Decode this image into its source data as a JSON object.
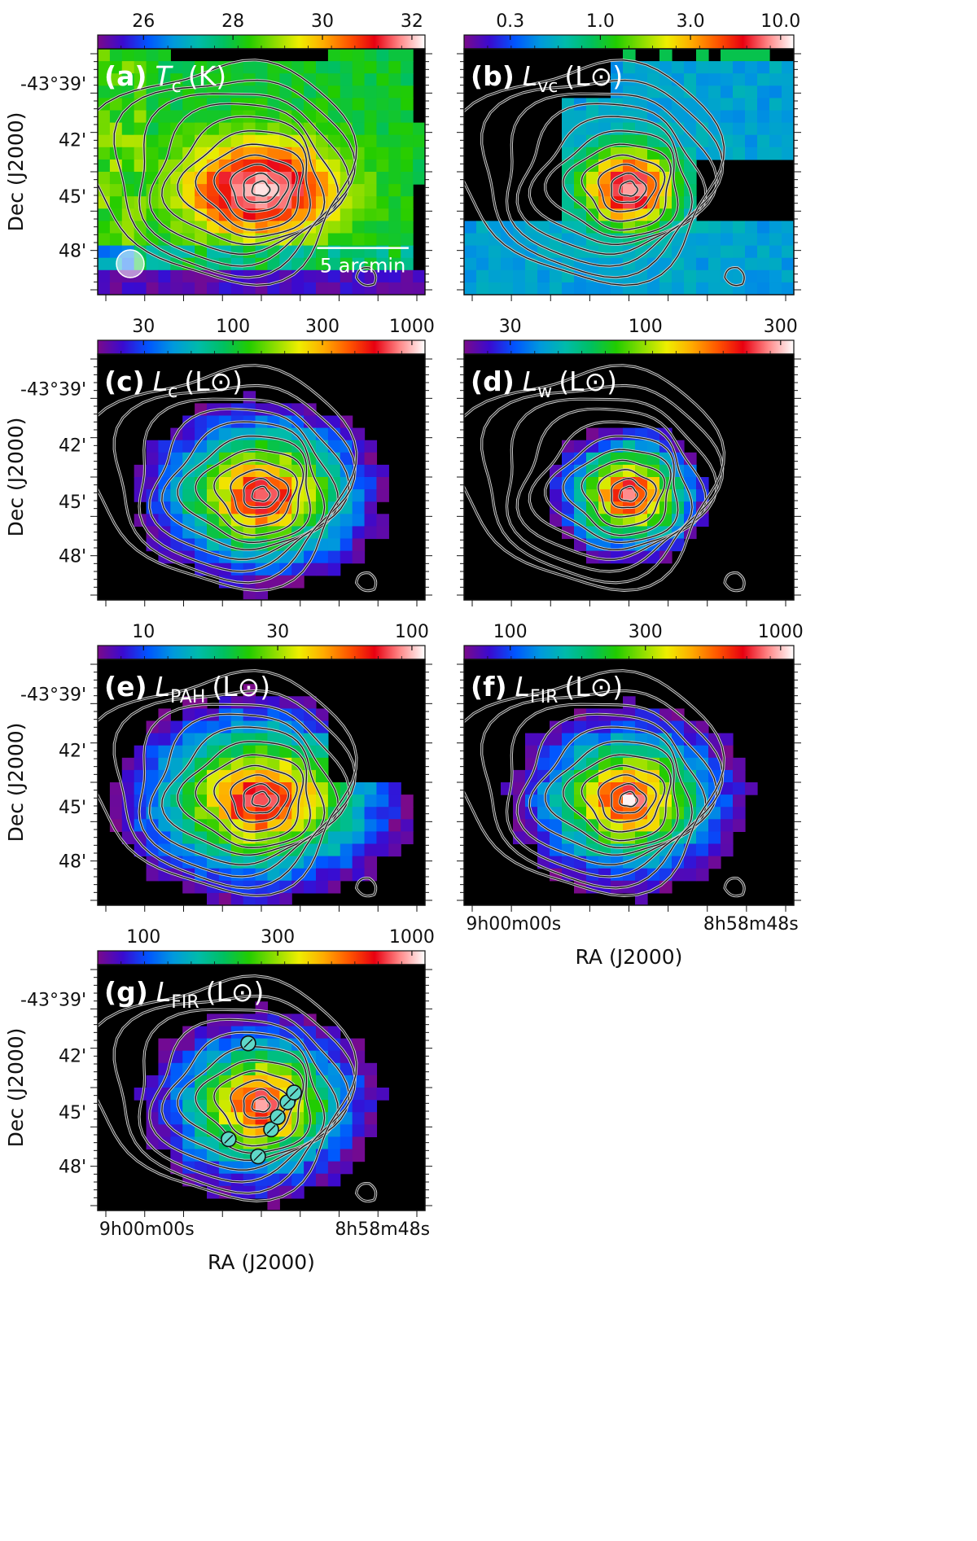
{
  "figure": {
    "panels": [
      {
        "id": "a",
        "letter": "(a)",
        "quantity": "T",
        "subscript": "c",
        "unit": "(K)",
        "colorbar_ticks": [
          "26",
          "28",
          "30",
          "32"
        ],
        "show_dec_labels": true,
        "show_ra_labels": false,
        "scale_bar": "5 arcmin",
        "beam": true,
        "markers": false
      },
      {
        "id": "b",
        "letter": "(b)",
        "quantity": "L",
        "subscript": "vc",
        "unit": "(L⊙)",
        "colorbar_ticks": [
          "0.3",
          "1.0",
          "3.0",
          "10.0"
        ],
        "show_dec_labels": false,
        "show_ra_labels": false,
        "scale_bar": "",
        "beam": false,
        "markers": false
      },
      {
        "id": "c",
        "letter": "(c)",
        "quantity": "L",
        "subscript": "c",
        "unit": "(L⊙)",
        "colorbar_ticks": [
          "30",
          "100",
          "300",
          "1000"
        ],
        "show_dec_labels": true,
        "show_ra_labels": false,
        "scale_bar": "",
        "beam": false,
        "markers": false
      },
      {
        "id": "d",
        "letter": "(d)",
        "quantity": "L",
        "subscript": "w",
        "unit": "(L⊙)",
        "colorbar_ticks": [
          "30",
          "100",
          "300"
        ],
        "show_dec_labels": false,
        "show_ra_labels": false,
        "scale_bar": "",
        "beam": false,
        "markers": false
      },
      {
        "id": "e",
        "letter": "(e)",
        "quantity": "L",
        "subscript": "PAH",
        "unit": "(L⊙)",
        "colorbar_ticks": [
          "10",
          "30",
          "100"
        ],
        "show_dec_labels": true,
        "show_ra_labels": false,
        "scale_bar": "",
        "beam": false,
        "markers": false
      },
      {
        "id": "f",
        "letter": "(f)",
        "quantity": "L",
        "subscript": "FIR",
        "unit": "(L⊙)",
        "colorbar_ticks": [
          "100",
          "300",
          "1000"
        ],
        "show_dec_labels": false,
        "show_ra_labels": true,
        "scale_bar": "",
        "beam": false,
        "markers": false
      },
      {
        "id": "g",
        "letter": "(g)",
        "quantity": "L",
        "subscript": "FIR",
        "unit": "(L⊙)",
        "colorbar_ticks": [
          "100",
          "300",
          "1000"
        ],
        "show_dec_labels": true,
        "show_ra_labels": true,
        "scale_bar": "",
        "beam": false,
        "markers": true
      }
    ],
    "dec_tick_labels": [
      "-43°39'",
      "42'",
      "45'",
      "48'"
    ],
    "dec_axis_title": "Dec (J2000)",
    "ra_tick_labels": [
      "9h00m00s",
      "8h58m48s"
    ],
    "ra_axis_title": "RA (J2000)",
    "colormap": [
      "#7a0a8a",
      "#3a0ad0",
      "#0055ff",
      "#0099dd",
      "#00bbaa",
      "#00c060",
      "#22cc00",
      "#88dd00",
      "#eeee00",
      "#ffaa00",
      "#ff5500",
      "#e80010",
      "#ff8888",
      "#ffffff"
    ]
  }
}
